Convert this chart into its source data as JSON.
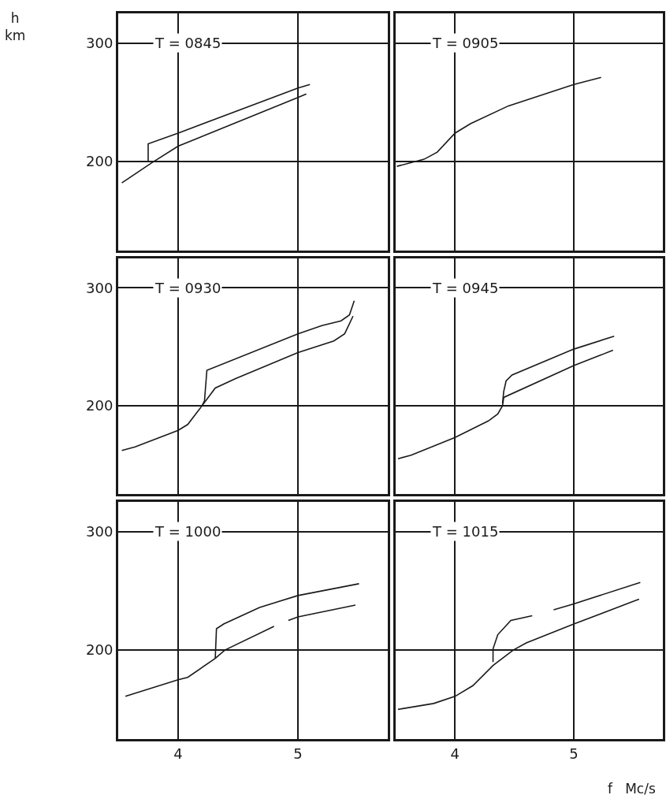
{
  "chart_data": [
    {
      "type": "line",
      "title": "T = 0845",
      "ylabel": "h\nkm",
      "xlim": [
        3.5,
        5.75
      ],
      "ylim": [
        125,
        325
      ],
      "xticks": [
        4,
        5
      ],
      "yticks": [
        200,
        300
      ],
      "grid": true,
      "tick_labels": "y",
      "series": [
        {
          "color": "#1a1a1a",
          "x": [
            3.75,
            3.75,
            4.0,
            5.0,
            5.1
          ],
          "values": [
            200,
            215,
            224,
            262,
            265
          ]
        },
        {
          "color": "#1a1a1a",
          "x": [
            3.53,
            3.78,
            4.0,
            5.0,
            5.07
          ],
          "values": [
            182,
            199,
            213,
            254,
            257
          ]
        }
      ]
    },
    {
      "type": "line",
      "title": "T = 0905",
      "xlim": [
        3.5,
        5.75
      ],
      "ylim": [
        125,
        325
      ],
      "xticks": [
        4,
        5
      ],
      "yticks": [
        200,
        300
      ],
      "grid": true,
      "tick_labels": false,
      "series": [
        {
          "color": "#1a1a1a",
          "x": [
            3.51,
            3.74,
            3.85,
            4.0,
            4.13,
            4.45,
            5.0,
            5.23
          ],
          "values": [
            196,
            202,
            208,
            224,
            232,
            247,
            265,
            271
          ]
        }
      ]
    },
    {
      "type": "line",
      "title": "T = 0930",
      "xlim": [
        3.5,
        5.75
      ],
      "ylim": [
        125,
        325
      ],
      "xticks": [
        4,
        5
      ],
      "yticks": [
        200,
        300
      ],
      "grid": true,
      "tick_labels": "y",
      "series": [
        {
          "color": "#1a1a1a",
          "x": [
            4.2,
            4.22,
            4.24,
            5.0,
            5.2,
            5.36,
            5.43,
            5.47
          ],
          "values": [
            200,
            204,
            230,
            261,
            268,
            272,
            277,
            289
          ]
        },
        {
          "color": "#1a1a1a",
          "x": [
            3.53,
            3.64,
            4.0,
            4.08,
            4.2,
            4.31,
            4.48,
            5.0,
            5.3,
            5.39,
            5.46
          ],
          "values": [
            162,
            165,
            179,
            184,
            200,
            215,
            223,
            245,
            255,
            261,
            276
          ]
        }
      ]
    },
    {
      "type": "line",
      "title": "T = 0945",
      "xlim": [
        3.5,
        5.75
      ],
      "ylim": [
        125,
        325
      ],
      "xticks": [
        4,
        5
      ],
      "yticks": [
        200,
        300
      ],
      "grid": true,
      "tick_labels": false,
      "series": [
        {
          "color": "#1a1a1a",
          "x": [
            4.4,
            4.41,
            4.43,
            4.48,
            5.0,
            5.34
          ],
          "values": [
            202,
            212,
            221,
            226,
            248,
            259
          ]
        },
        {
          "color": "#1a1a1a",
          "x": [
            3.52,
            3.63,
            4.0,
            4.28,
            4.36,
            4.4,
            4.41,
            5.0,
            5.33
          ],
          "values": [
            155,
            158,
            173,
            187,
            193,
            200,
            207,
            234,
            247
          ]
        }
      ]
    },
    {
      "type": "line",
      "title": "T = 1000",
      "xlim": [
        3.5,
        5.75
      ],
      "ylim": [
        125,
        325
      ],
      "xticks": [
        4,
        5
      ],
      "yticks": [
        200,
        300
      ],
      "grid": true,
      "series": [
        {
          "color": "#1a1a1a",
          "x": [
            4.31,
            4.32,
            4.38,
            4.68,
            5.0,
            5.51
          ],
          "values": [
            193,
            218,
            222,
            236,
            246,
            256
          ]
        },
        {
          "color": "#1a1a1a",
          "x": [
            3.56,
            4.0,
            4.08,
            4.31,
            4.39,
            4.8,
            4.86,
            4.92,
            5.0,
            5.48
          ],
          "values": [
            161,
            175,
            177,
            193,
            200,
            220,
            null,
            225,
            228,
            238
          ]
        }
      ]
    },
    {
      "type": "line",
      "title": "T = 1015",
      "xlabel": "f   Mc/s",
      "xlim": [
        3.5,
        5.75
      ],
      "ylim": [
        125,
        325
      ],
      "xticks": [
        4,
        5
      ],
      "yticks": [
        200,
        300
      ],
      "grid": true,
      "tick_labels": "x",
      "series": [
        {
          "color": "#1a1a1a",
          "x": [
            4.32,
            4.32,
            4.36,
            4.47,
            4.65,
            4.74,
            4.83,
            5.0,
            5.56
          ],
          "values": [
            190,
            201,
            213,
            225,
            229,
            null,
            234,
            239,
            257
          ]
        },
        {
          "color": "#1a1a1a",
          "x": [
            3.52,
            3.82,
            4.0,
            4.15,
            4.32,
            4.49,
            4.6,
            5.0,
            5.55
          ],
          "values": [
            150,
            155,
            161,
            170,
            187,
            200,
            206,
            222,
            243
          ]
        }
      ]
    }
  ]
}
